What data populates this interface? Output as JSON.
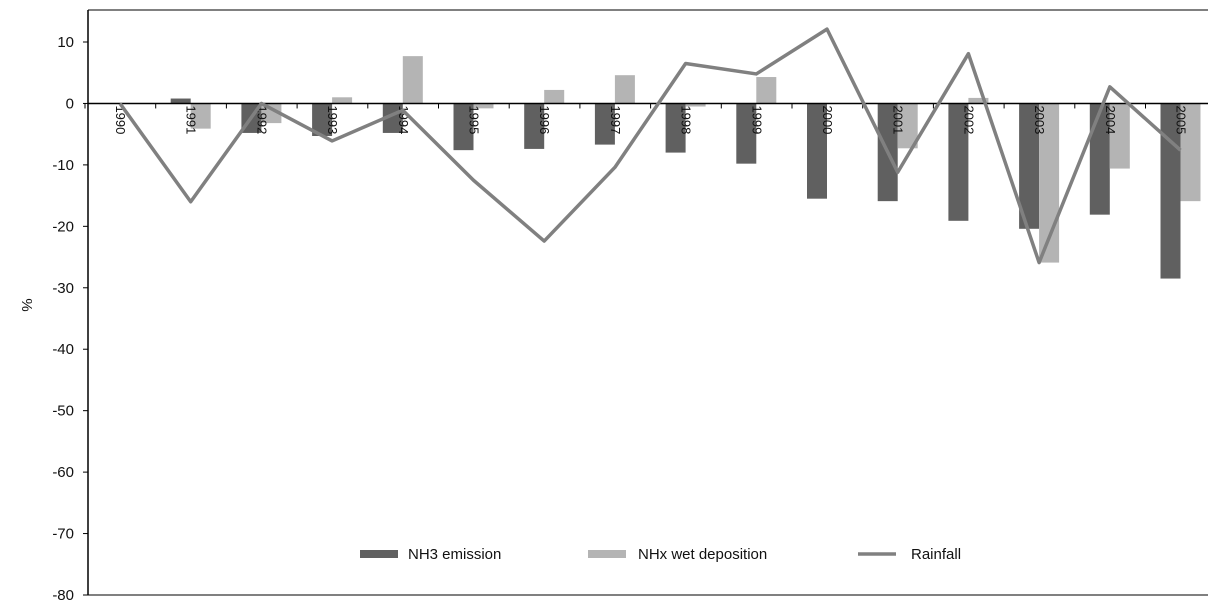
{
  "chart_data": {
    "type": "bar",
    "categories": [
      "1990",
      "1991",
      "1992",
      "1993",
      "1994",
      "1995",
      "1996",
      "1997",
      "1998",
      "1999",
      "2000",
      "2001",
      "2002",
      "2003",
      "2004",
      "2005"
    ],
    "series": [
      {
        "name": "NH3 emission",
        "kind": "bar",
        "color": "#606060",
        "values": [
          0,
          0.8,
          -4.8,
          -5.3,
          -4.8,
          -7.6,
          -7.4,
          -6.7,
          -8.0,
          -9.8,
          -15.5,
          -15.9,
          -19.1,
          -20.4,
          -18.1,
          -28.5
        ]
      },
      {
        "name": "NHx wet deposition",
        "kind": "bar",
        "color": "#b4b4b4",
        "values": [
          0,
          -4.1,
          -3.2,
          1.0,
          7.7,
          -0.8,
          2.2,
          4.6,
          -0.5,
          4.3,
          0,
          -7.3,
          0.9,
          -25.9,
          -10.6,
          -15.9
        ]
      },
      {
        "name": "Rainfall",
        "kind": "line",
        "color": "#808080",
        "values": [
          0,
          -16.0,
          0,
          -6.1,
          -1.1,
          -12.5,
          -22.4,
          -10.4,
          6.5,
          4.8,
          12.1,
          -11.2,
          8.1,
          -25.9,
          2.7,
          -7.6
        ]
      }
    ],
    "ylabel": "%",
    "ylim": [
      -80,
      10
    ],
    "yticks": [
      "10",
      "0",
      "-10",
      "-20",
      "-30",
      "-40",
      "-50",
      "-60",
      "-70",
      "-80"
    ],
    "legend_position": "bottom-center",
    "grid": false
  }
}
